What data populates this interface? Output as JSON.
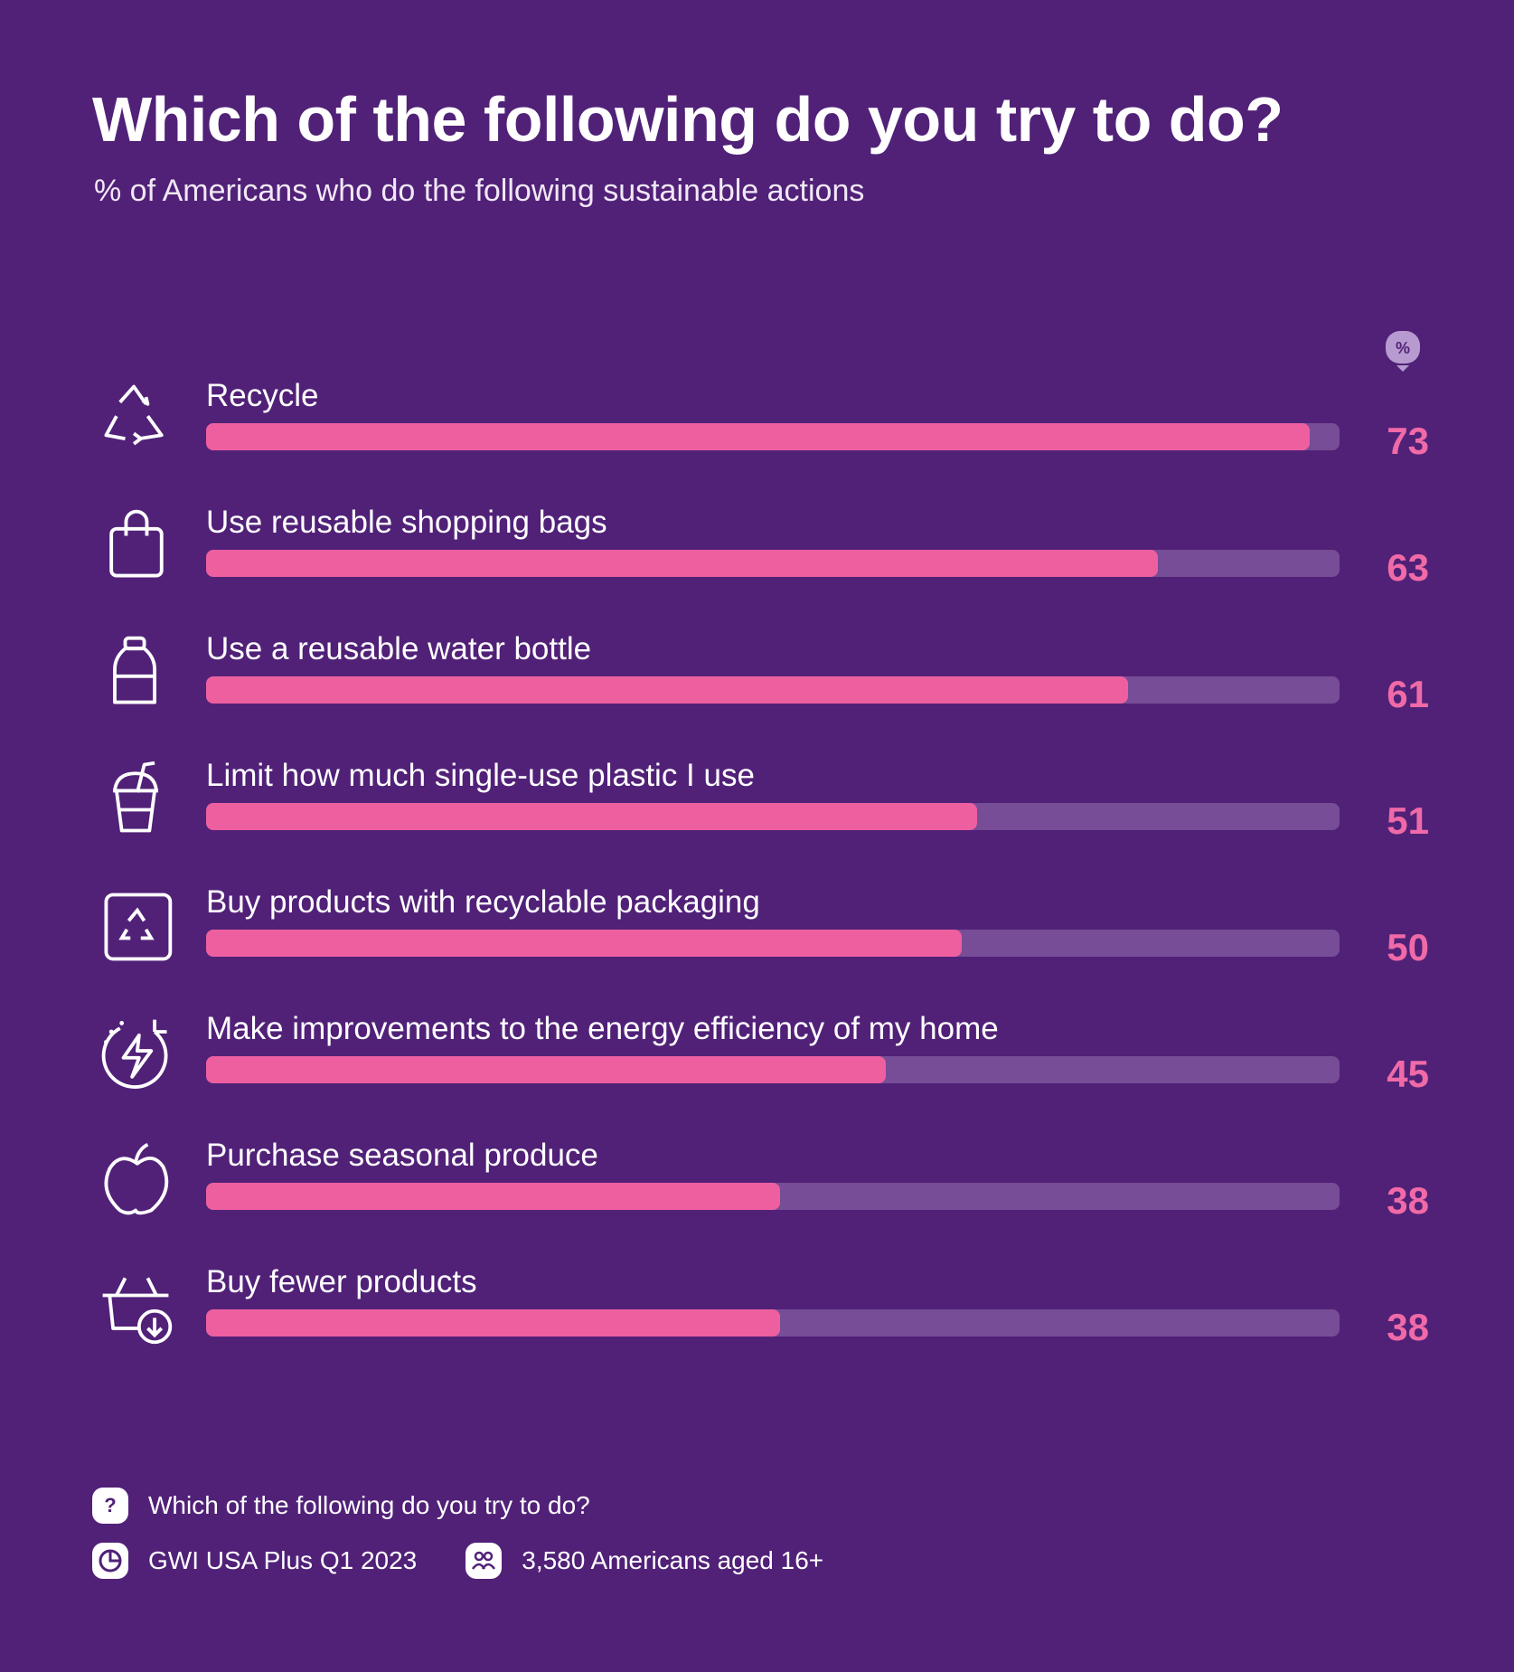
{
  "chart_data": {
    "type": "bar",
    "orientation": "horizontal",
    "title": "Which of the following do you try to do?",
    "subtitle": "% of Americans who do the following sustainable actions",
    "unit_badge": "%",
    "categories": [
      "Recycle",
      "Use reusable shopping bags",
      "Use a reusable water bottle",
      "Limit how much single-use plastic I use",
      "Buy products with recyclable packaging",
      "Make improvements to the energy efficiency of my home",
      "Purchase seasonal produce",
      "Buy fewer products"
    ],
    "values": [
      73,
      63,
      61,
      51,
      50,
      45,
      38,
      38
    ],
    "icons": [
      "recycle-icon",
      "shopping-bag-icon",
      "water-bottle-icon",
      "plastic-cup-icon",
      "recyclable-packaging-icon",
      "energy-efficiency-icon",
      "apple-icon",
      "basket-download-icon"
    ],
    "xlim": [
      0,
      75
    ],
    "grid": false,
    "colors": {
      "background": "#512178",
      "bar": "#ee5fa0",
      "track": "#764d96",
      "value": "#f06aa8"
    }
  },
  "footer": {
    "question": "Which of the following do you try to do?",
    "source": "GWI USA Plus Q1 2023",
    "sample": "3,580 Americans aged 16+",
    "question_icon": "?"
  }
}
